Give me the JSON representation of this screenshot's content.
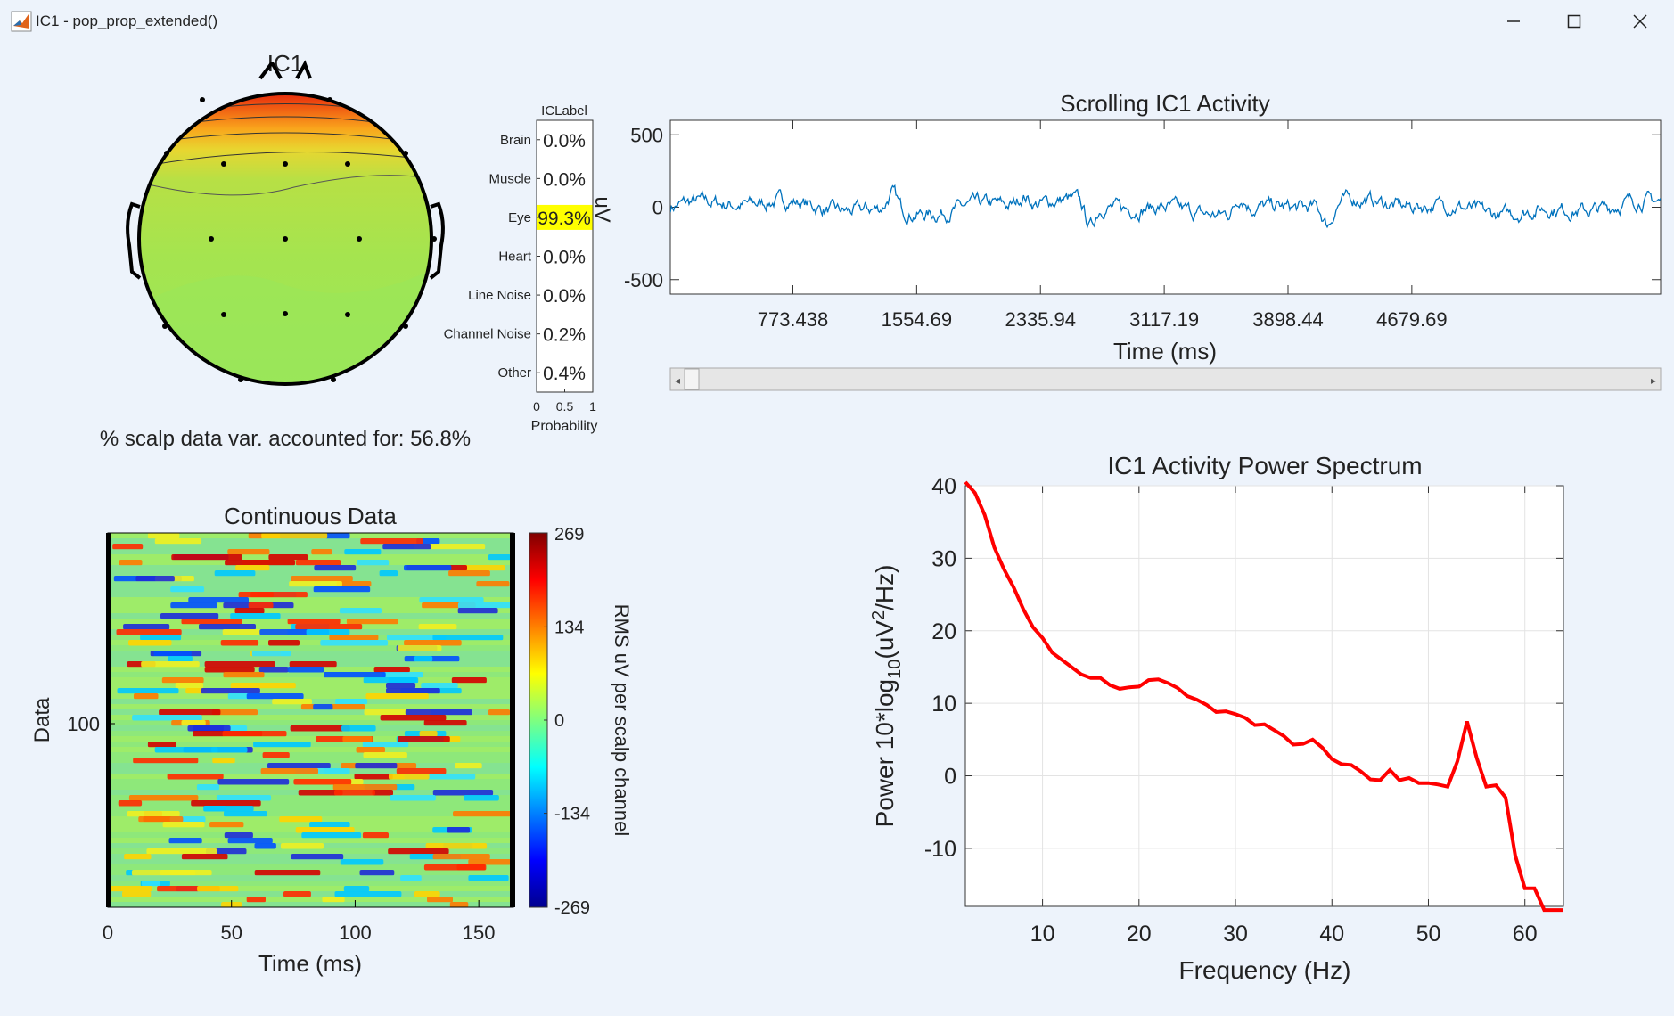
{
  "window": {
    "title": "IC1 - pop_prop_extended()",
    "controls": [
      "minimize",
      "maximize",
      "close"
    ]
  },
  "topomap": {
    "title": "IC1",
    "variance_text": "% scalp data var. accounted for: 56.8%",
    "colormap": "jet"
  },
  "iclabel": {
    "title": "ICLabel",
    "xlabel": "Probability",
    "xticks": [
      "0",
      "0.5",
      "1"
    ],
    "highlight_color": "#ffff00",
    "classes": [
      {
        "name": "Brain",
        "value": "0.0%",
        "p": 0.0
      },
      {
        "name": "Muscle",
        "value": "0.0%",
        "p": 0.0
      },
      {
        "name": "Eye",
        "value": "99.3%",
        "p": 0.993
      },
      {
        "name": "Heart",
        "value": "0.0%",
        "p": 0.0
      },
      {
        "name": "Line Noise",
        "value": "0.0%",
        "p": 0.0
      },
      {
        "name": "Channel Noise",
        "value": "0.2%",
        "p": 0.002
      },
      {
        "name": "Other",
        "value": "0.4%",
        "p": 0.004
      }
    ]
  },
  "scrolling": {
    "title": "Scrolling IC1 Activity",
    "ylabel": "uV",
    "xlabel": "Time (ms)",
    "yticks": [
      "500",
      "0",
      "-500"
    ],
    "xticks": [
      "773.438",
      "1554.69",
      "2335.94",
      "3117.19",
      "3898.44",
      "4679.69"
    ],
    "line_color": "#0072bd",
    "scrollbar": {
      "left_arrow": "◂",
      "right_arrow": "▸"
    }
  },
  "continuous": {
    "title": "Continuous Data",
    "ylabel": "Data",
    "xlabel": "Time (ms)",
    "ytick": "100",
    "xticks": [
      "0",
      "50",
      "100",
      "150"
    ],
    "colorbar": {
      "label": "RMS uV per scalp channel",
      "ticks": [
        "269",
        "134",
        "0",
        "-134",
        "-269"
      ]
    }
  },
  "spectrum": {
    "title": "IC1 Activity Power Spectrum",
    "xlabel": "Frequency (Hz)",
    "ylabel": "Power 10*log10(uV2/Hz)",
    "line_color": "#ff0000",
    "grid": true
  },
  "chart_data": [
    {
      "type": "line",
      "title": "IC1 Activity Power Spectrum",
      "xlabel": "Frequency (Hz)",
      "ylabel": "Power 10*log10(uV2/Hz)",
      "xlim": [
        2,
        64
      ],
      "ylim": [
        -18,
        40
      ],
      "xticks": [
        10,
        20,
        30,
        40,
        50,
        60
      ],
      "yticks": [
        -10,
        0,
        10,
        20,
        30,
        40
      ],
      "x": [
        2,
        3,
        4,
        5,
        6,
        7,
        8,
        9,
        10,
        11,
        12,
        13,
        14,
        15,
        16,
        17,
        18,
        19,
        20,
        21,
        22,
        23,
        24,
        25,
        26,
        27,
        28,
        29,
        30,
        31,
        32,
        33,
        34,
        35,
        36,
        37,
        38,
        39,
        40,
        41,
        42,
        43,
        44,
        45,
        46,
        47,
        48,
        49,
        50,
        51,
        52,
        53,
        54,
        55,
        56,
        57,
        58,
        59,
        60,
        61,
        62,
        63,
        64
      ],
      "y": [
        40.5,
        39,
        36,
        31.5,
        28.5,
        26,
        23,
        20.5,
        19,
        17,
        16,
        15,
        14,
        13.5,
        13.5,
        12.5,
        12,
        12.2,
        12.3,
        13.2,
        13.3,
        12.8,
        12.1,
        11,
        10.5,
        9.8,
        8.8,
        8.9,
        8.5,
        8,
        7,
        7.1,
        6.3,
        5.5,
        4.3,
        4.4,
        5,
        3.9,
        2.3,
        1.6,
        1.5,
        0.6,
        -0.5,
        -0.6,
        0.8,
        -0.6,
        -0.3,
        -1,
        -1,
        -1.2,
        -1.5,
        2,
        7.5,
        2.5,
        -1.5,
        -1.3,
        -3,
        -11,
        -15.5,
        -15.5,
        -18.5,
        -18.5,
        -18.5
      ]
    },
    {
      "type": "line",
      "title": "Scrolling IC1 Activity",
      "xlabel": "Time (ms)",
      "ylabel": "uV",
      "xlim": [
        0,
        6250
      ],
      "ylim": [
        -600,
        600
      ],
      "xticks": [
        773.438,
        1554.69,
        2335.94,
        3117.19,
        3898.44,
        4679.69
      ],
      "yticks": [
        -500,
        0,
        500
      ]
    },
    {
      "type": "heatmap",
      "title": "Continuous Data",
      "xlabel": "Time (ms)",
      "ylabel": "Data",
      "xlim": [
        0,
        164
      ],
      "clim": [
        -269,
        269
      ],
      "colormap": "jet"
    }
  ]
}
